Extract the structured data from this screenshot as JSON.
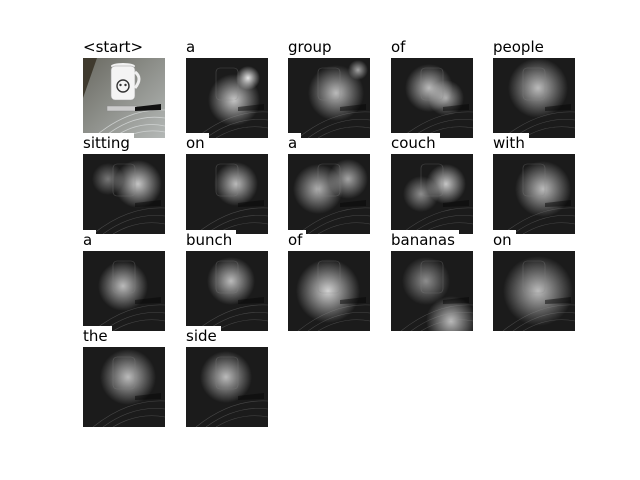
{
  "caption_words": [
    "<start>",
    "a",
    "group",
    "of",
    "people",
    "sitting",
    "on",
    "a",
    "couch",
    "with",
    "a",
    "bunch",
    "of",
    "bananas",
    "on",
    "the",
    "side"
  ],
  "columns": 5,
  "colors": {
    "background": "#ffffff",
    "text": "#000000"
  }
}
